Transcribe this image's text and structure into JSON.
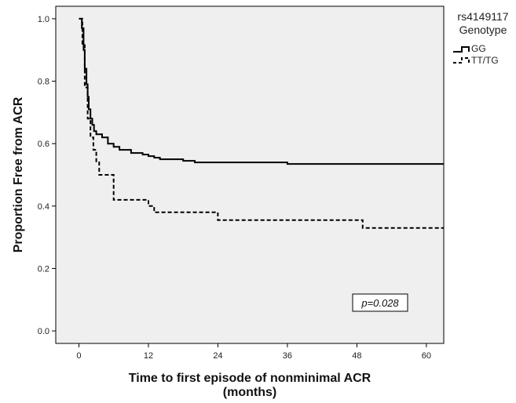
{
  "chart_data": {
    "type": "line",
    "xlabel_line1": "Time to first episode of nonminimal ACR",
    "xlabel_line2": "(months)",
    "ylabel": "Proportion Free from ACR",
    "xlim": [
      -4,
      63
    ],
    "ylim": [
      -0.04,
      1.04
    ],
    "x_ticks": [
      0,
      12,
      24,
      36,
      48,
      60
    ],
    "y_ticks": [
      0.0,
      0.2,
      0.4,
      0.6,
      0.8,
      1.0
    ],
    "y_tick_labels": [
      "0.0",
      "0.2",
      "0.4",
      "0.6",
      "0.8",
      "1.0"
    ],
    "legend_title_line1": "rs4149117",
    "legend_title_line2": "Genotype",
    "legend_position": "top-right, outside plot",
    "annotation": "p=0.028",
    "grid": false,
    "background_color": "#efefef",
    "series": [
      {
        "name": "GG",
        "style": "solid",
        "color": "#000000",
        "x": [
          0,
          0.5,
          0.8,
          1.0,
          1.3,
          1.5,
          1.7,
          2.0,
          2.3,
          2.6,
          3.0,
          3.5,
          4.0,
          5.0,
          6.0,
          7.0,
          9.0,
          11.0,
          12.0,
          13.0,
          14.0,
          16.0,
          18.0,
          20.0,
          24.0,
          30.0,
          36.0,
          40.0,
          48.0,
          55.0,
          63.0
        ],
        "y": [
          1.0,
          0.97,
          0.9,
          0.84,
          0.79,
          0.75,
          0.71,
          0.68,
          0.66,
          0.64,
          0.63,
          0.63,
          0.62,
          0.6,
          0.59,
          0.58,
          0.57,
          0.565,
          0.56,
          0.555,
          0.55,
          0.55,
          0.545,
          0.54,
          0.54,
          0.54,
          0.535,
          0.535,
          0.535,
          0.535,
          0.535
        ]
      },
      {
        "name": "TT/TG",
        "style": "dashed",
        "color": "#000000",
        "x": [
          0,
          0.6,
          1.0,
          1.5,
          2.0,
          2.5,
          3.0,
          3.5,
          6.0,
          8.0,
          12.0,
          13.0,
          24.0,
          48.0,
          49.0,
          63.0
        ],
        "y": [
          1.0,
          0.92,
          0.78,
          0.68,
          0.62,
          0.58,
          0.54,
          0.5,
          0.42,
          0.42,
          0.4,
          0.38,
          0.355,
          0.355,
          0.33,
          0.33
        ]
      }
    ]
  }
}
